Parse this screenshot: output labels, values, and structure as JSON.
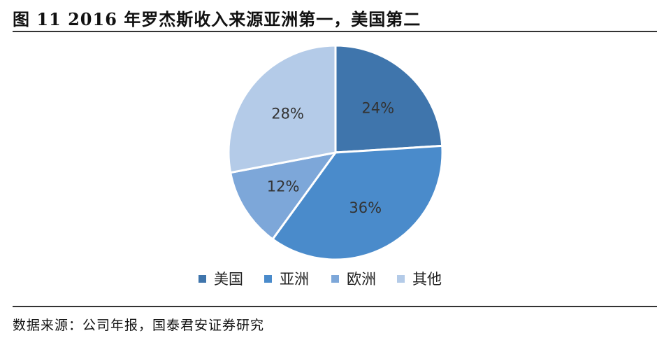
{
  "title": "图 11 2016 年罗杰斯收入来源亚洲第一，美国第二",
  "source": "数据来源：公司年报，国泰君安证券研究",
  "chart_data": {
    "type": "pie",
    "start": "top",
    "direction": "clockwise",
    "legend_position": "bottom",
    "categories": [
      "美国",
      "亚洲",
      "欧洲",
      "其他"
    ],
    "values": [
      24,
      36,
      12,
      28
    ],
    "data_labels": [
      "24%",
      "36%",
      "12%",
      "28%"
    ],
    "colors": [
      "#3F75AC",
      "#4A8BCB",
      "#7DA7D9",
      "#B4CBE8"
    ]
  }
}
